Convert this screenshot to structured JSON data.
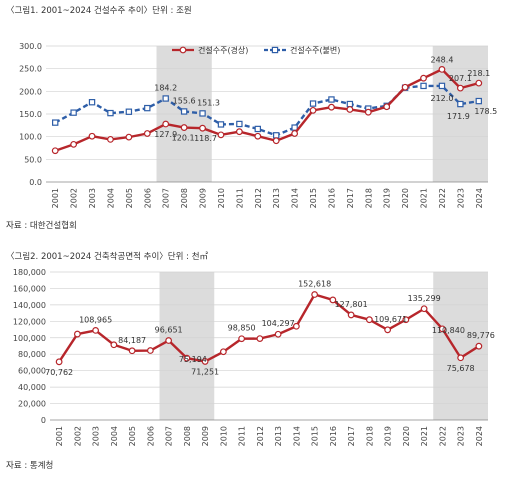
{
  "figure1": {
    "title": "〈그림1. 2001~2024 건설수주 추이〉단위 : 조원",
    "source": "자료 : 대한건설협회"
  },
  "figure2": {
    "title": "〈그림2. 2001~2024 건축착공면적 추이〉단위 : 천㎡",
    "source": "자료 : 통계청"
  },
  "chart_data": [
    {
      "type": "line",
      "title": "〈그림1. 2001~2024 건설수주 추이〉단위 : 조원",
      "xlabel": "",
      "ylabel": "",
      "x": [
        "2001",
        "2002",
        "2003",
        "2004",
        "2005",
        "2006",
        "2007",
        "2008",
        "2009",
        "2010",
        "2011",
        "2012",
        "2013",
        "2014",
        "2015",
        "2016",
        "2017",
        "2018",
        "2019",
        "2020",
        "2021",
        "2022",
        "2023",
        "2024"
      ],
      "ylim": [
        0,
        300
      ],
      "yticks": [
        "0.0",
        "50.0",
        "100.0",
        "150.0",
        "200.0",
        "250.0",
        "300.0"
      ],
      "shaded_ranges": [
        [
          "2007",
          "2009"
        ],
        [
          "2022",
          "2024"
        ]
      ],
      "legend_position": "top-center",
      "series": [
        {
          "name": "건설수주(경상)",
          "color": "#b7262b",
          "style": "solid-circle",
          "values": [
            69,
            83,
            101,
            94,
            99,
            107,
            127.9,
            120.1,
            118.7,
            104,
            111,
            101,
            91,
            107,
            158,
            165,
            160,
            154,
            166,
            209,
            229,
            248.4,
            207.1,
            218.1
          ],
          "labels": {
            "2007": "127.9",
            "2008": "120.1",
            "2009": "118.7",
            "2022": "248.4",
            "2023": "207.1",
            "2024": "218.1"
          }
        },
        {
          "name": "건설수주(불변)",
          "color": "#2e5ea8",
          "style": "dashed-square",
          "values": [
            131,
            153,
            176,
            152,
            155,
            163,
            184.2,
            155.6,
            151.3,
            127,
            128,
            117,
            103,
            120,
            173,
            182,
            172,
            162,
            168,
            208,
            212,
            212.0,
            171.9,
            178.5
          ],
          "labels": {
            "2007": "184.2",
            "2008": "155.6",
            "2009": "151.3",
            "2022": "212.0",
            "2023": "171.9",
            "2024": "178.5"
          }
        }
      ]
    },
    {
      "type": "line",
      "title": "〈그림2. 2001~2024 건축착공면적 추이〉단위 : 천㎡",
      "xlabel": "",
      "ylabel": "",
      "x": [
        "2001",
        "2002",
        "2003",
        "2004",
        "2005",
        "2006",
        "2007",
        "2008",
        "2009",
        "2010",
        "2011",
        "2012",
        "2013",
        "2014",
        "2015",
        "2016",
        "2017",
        "2018",
        "2019",
        "2020",
        "2021",
        "2022",
        "2023",
        "2024"
      ],
      "ylim": [
        0,
        180000
      ],
      "yticks": [
        "0",
        "20,000",
        "40,000",
        "60,000",
        "80,000",
        "100,000",
        "120,000",
        "140,000",
        "160,000",
        "180,000"
      ],
      "shaded_ranges": [
        [
          "2007",
          "2009"
        ],
        [
          "2022",
          "2024"
        ]
      ],
      "series": [
        {
          "color": "#b7262b",
          "style": "solid-circle",
          "values": [
            70762,
            104500,
            108965,
            91500,
            84187,
            84500,
            96651,
            75194,
            71251,
            83000,
            98850,
            99000,
            104297,
            114000,
            152618,
            146000,
            127801,
            122000,
            109671,
            122000,
            135299,
            110840,
            75678,
            89776
          ],
          "labels": {
            "2001": "70,762",
            "2003": "108,965",
            "2005": "84,187",
            "2007": "96,651",
            "2008": "75,194",
            "2009": "71,251",
            "2011": "98,850",
            "2013": "104,297",
            "2015": "152,618",
            "2017": "127,801",
            "2019": "109,671",
            "2021": "135,299",
            "2022": "110,840",
            "2023": "75,678",
            "2024": "89,776"
          }
        }
      ]
    }
  ]
}
